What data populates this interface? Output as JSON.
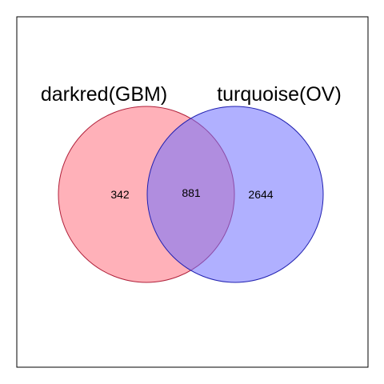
{
  "sets": [
    {
      "name": "darkred(GBM)",
      "fill": "#ff5a6a",
      "stroke": "#b0203a"
    },
    {
      "name": "turquoise(OV)",
      "fill": "#7070ff",
      "stroke": "#2020b0"
    }
  ],
  "counts": {
    "left_only": "342",
    "overlap": "881",
    "right_only": "2644"
  },
  "colors": {
    "frame": "#000000",
    "background": "#ffffff",
    "overlap_fill": "#a97cc8"
  }
}
